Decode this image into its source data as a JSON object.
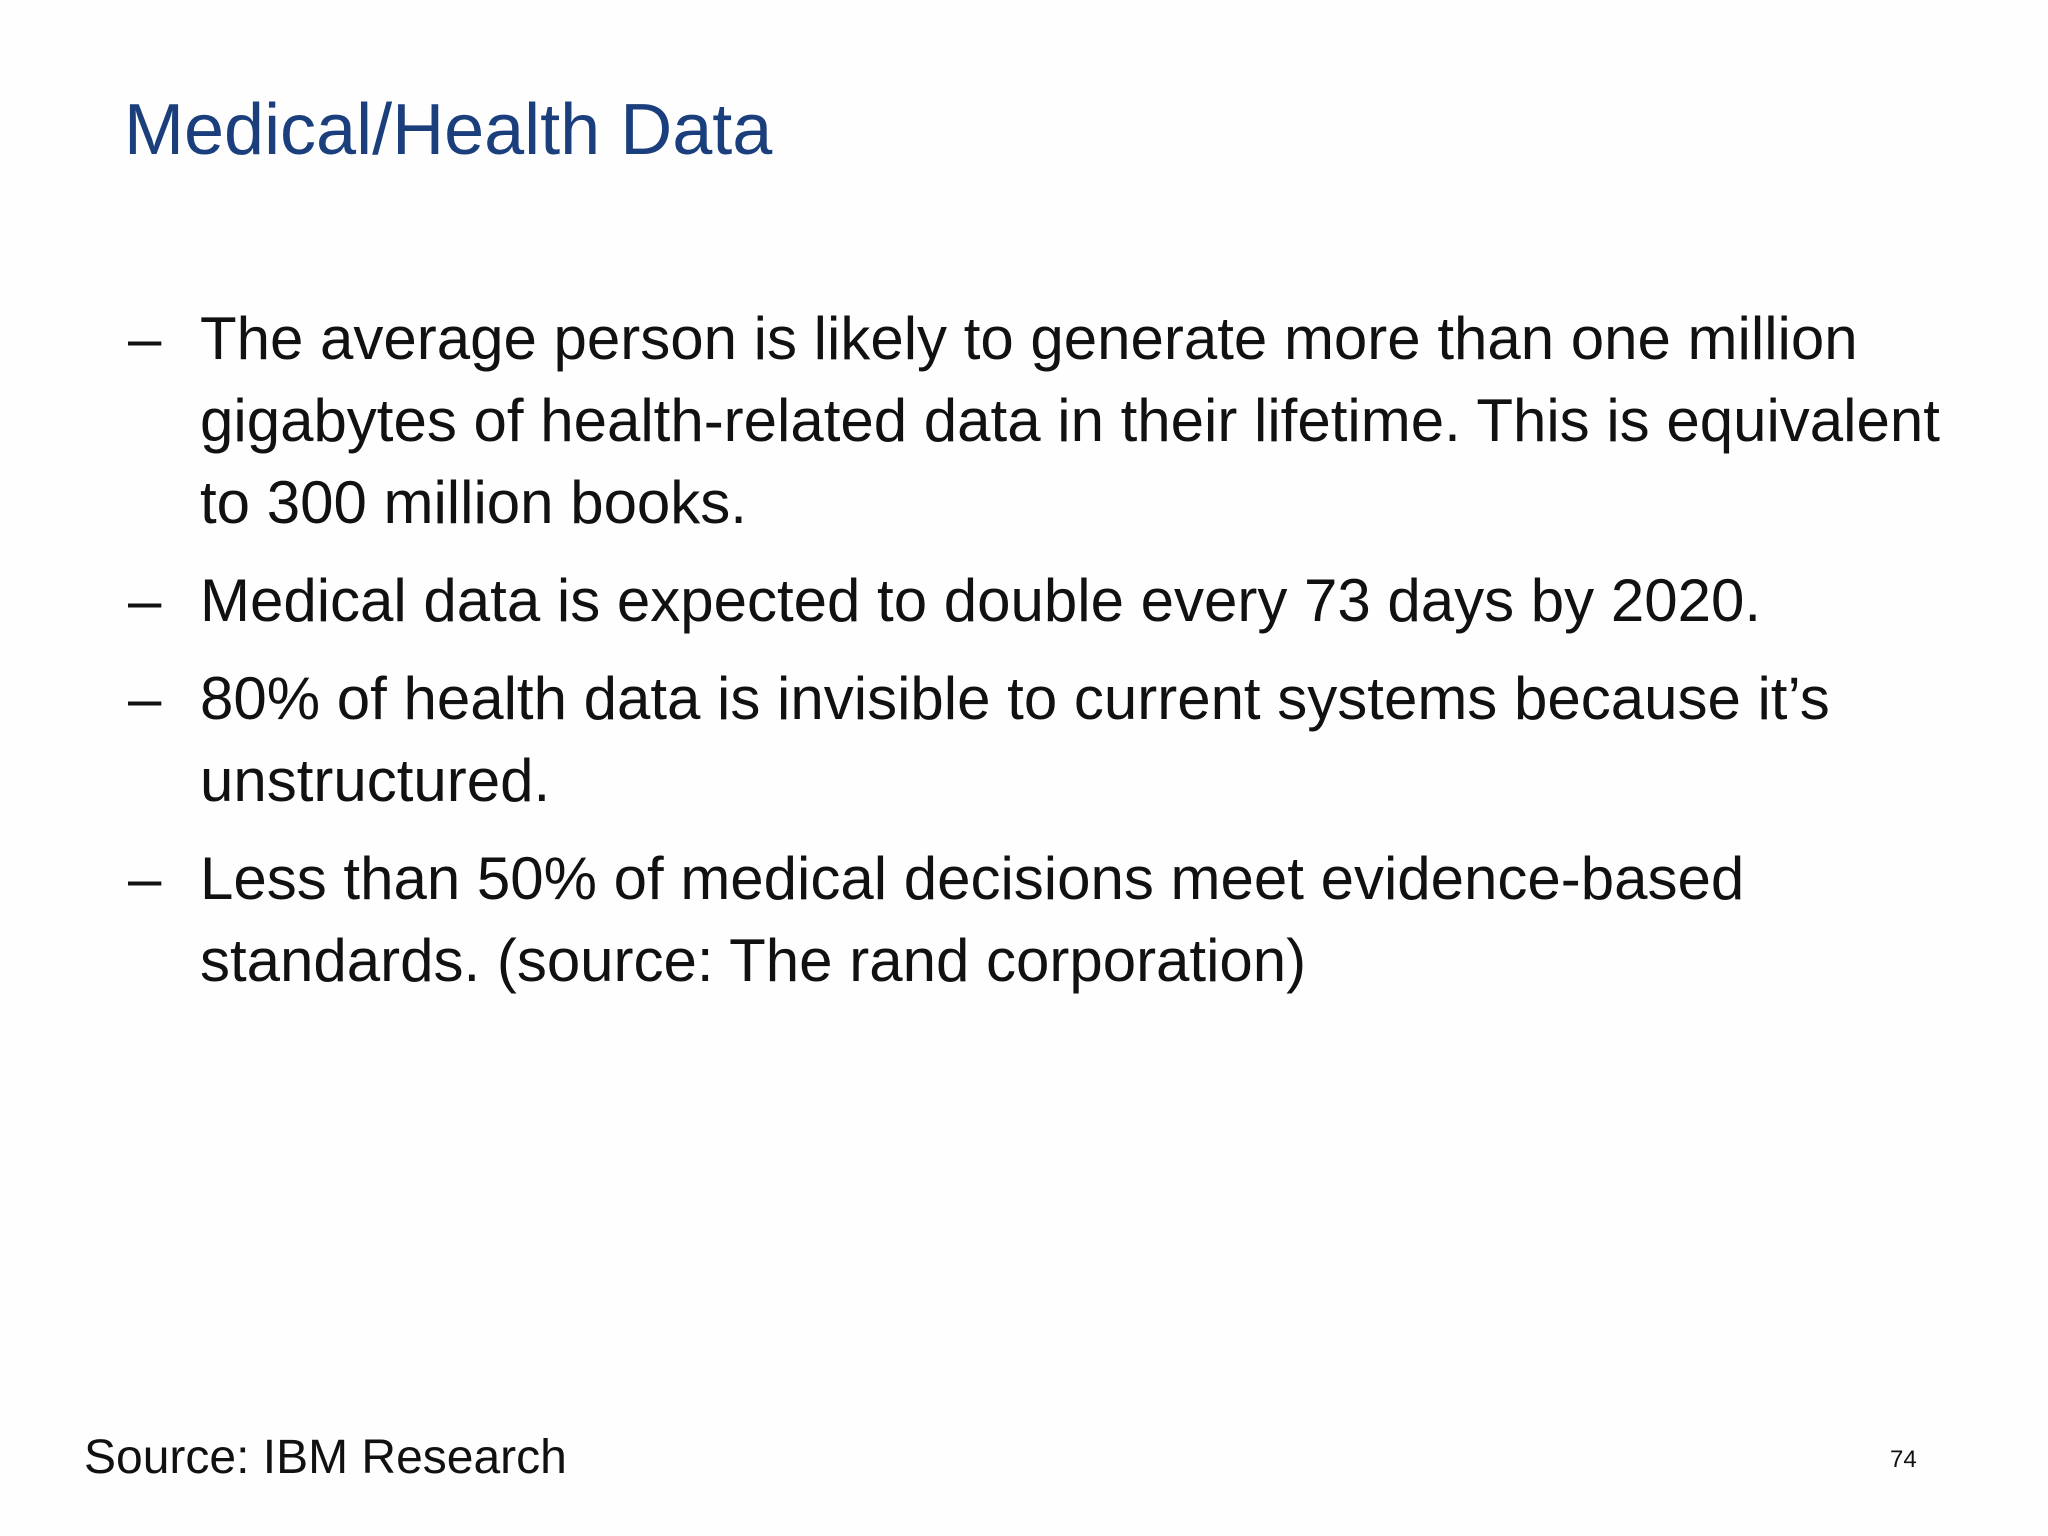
{
  "slide": {
    "title": "Medical/Health Data",
    "bullet_marker": "–",
    "bullets": [
      "The average person is likely to generate more than one million gigabytes of health-related data in their lifetime. This is equivalent to 300 million books.",
      "Medical data is expected to double every 73 days by 2020.",
      "80% of health data is invisible to current systems because it’s unstructured.",
      "Less than 50% of medical decisions meet evidence-based standards.  (source: The rand corporation)"
    ],
    "source": "Source: IBM Research",
    "page_number": "74"
  },
  "colors": {
    "title": "#1b3f7c",
    "body_text": "#111111",
    "background": "#fefefe"
  }
}
